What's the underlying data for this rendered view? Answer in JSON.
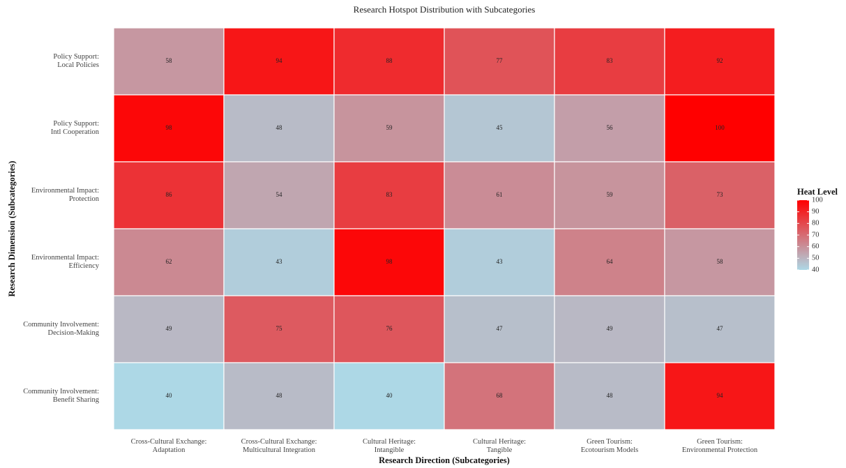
{
  "chart_data": {
    "type": "heatmap",
    "title": "Research Hotspot Distribution with Subcategories",
    "x_label": "Research Direction (Subcategories)",
    "y_label": "Research Dimension (Subcategories)",
    "x_categories": [
      "Cross-Cultural Exchange:\nAdaptation",
      "Cross-Cultural Exchange:\nMulticultural Integration",
      "Cultural Heritage:\nIntangible",
      "Cultural Heritage:\nTangible",
      "Green Tourism:\nEcotourism Models",
      "Green Tourism:\nEnvironmental Protection"
    ],
    "y_categories": [
      "Policy Support:\nLocal Policies",
      "Policy Support:\nIntl Cooperation",
      "Environmental Impact:\nProtection",
      "Environmental Impact:\nEfficiency",
      "Community Involvement:\nDecision-Making",
      "Community Involvement:\nBenefit Sharing"
    ],
    "values": [
      [
        58,
        94,
        88,
        77,
        83,
        92
      ],
      [
        98,
        48,
        59,
        45,
        56,
        100
      ],
      [
        86,
        54,
        83,
        61,
        59,
        73
      ],
      [
        62,
        43,
        98,
        43,
        64,
        58
      ],
      [
        49,
        75,
        76,
        47,
        49,
        47
      ],
      [
        40,
        48,
        40,
        68,
        48,
        94
      ]
    ],
    "legend_title": "Heat Level",
    "color_low": "#add8e6",
    "color_high": "#ff0000",
    "clim": [
      40,
      100
    ],
    "cticks": [
      40,
      50,
      60,
      70,
      80,
      90,
      100
    ]
  }
}
